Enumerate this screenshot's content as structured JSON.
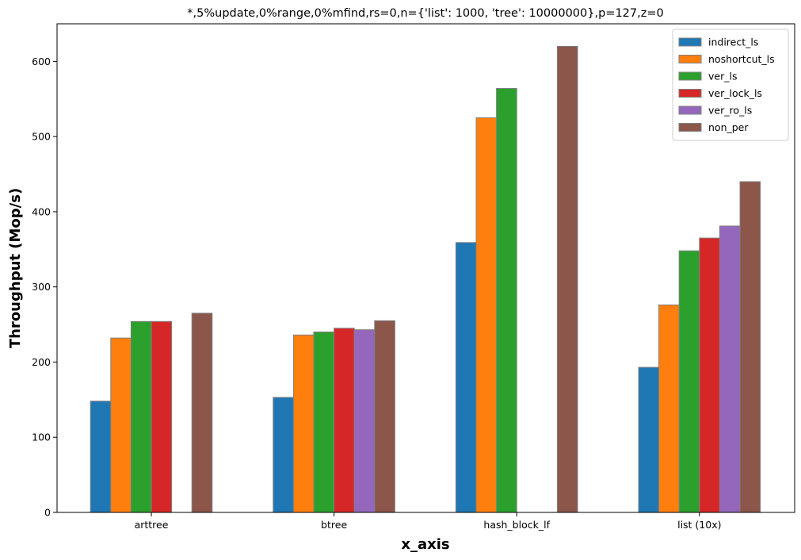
{
  "chart_data": {
    "type": "bar",
    "title": "*,5%update,0%range,0%mfind,rs=0,n={'list': 1000, 'tree': 10000000},p=127,z=0",
    "xlabel": "x_axis",
    "ylabel": "Throughput (Mop/s)",
    "ylim": [
      0,
      650
    ],
    "yticks": [
      0,
      100,
      200,
      300,
      400,
      500,
      600
    ],
    "grid": false,
    "legend_position": "top-right",
    "categories": [
      "arttree",
      "btree",
      "hash_block_lf",
      "list (10x)"
    ],
    "series": [
      {
        "name": "indirect_ls",
        "color": "#1f77b4",
        "values": [
          148,
          153,
          359,
          193
        ]
      },
      {
        "name": "noshortcut_ls",
        "color": "#ff7f0e",
        "values": [
          232,
          236,
          525,
          276
        ]
      },
      {
        "name": "ver_ls",
        "color": "#2ca02c",
        "values": [
          254,
          240,
          564,
          348
        ]
      },
      {
        "name": "ver_lock_ls",
        "color": "#d62728",
        "values": [
          254,
          245,
          null,
          365
        ]
      },
      {
        "name": "ver_ro_ls",
        "color": "#9467bd",
        "values": [
          null,
          243,
          null,
          381
        ]
      },
      {
        "name": "non_per",
        "color": "#8c564b",
        "values": [
          265,
          255,
          620,
          440
        ]
      }
    ]
  }
}
